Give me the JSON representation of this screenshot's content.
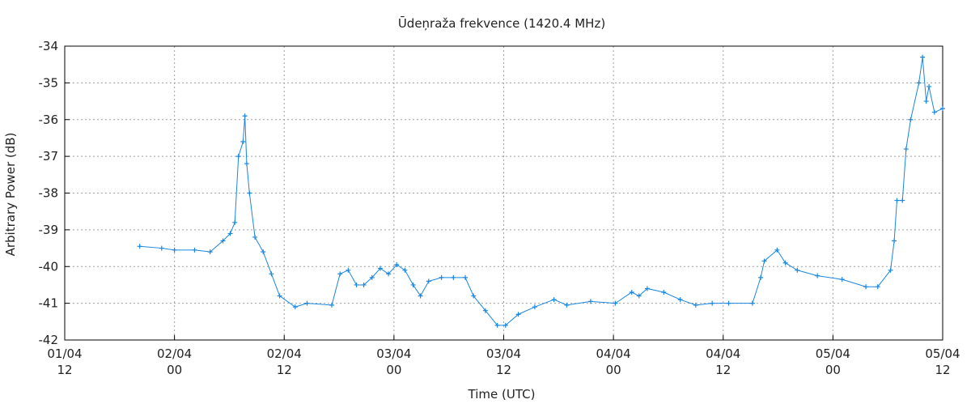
{
  "chart_data": {
    "type": "line",
    "title": "Ūdeņraža frekvence (1420.4 MHz)",
    "x_label": "Time (UTC)",
    "y_label": "Arbitrary Power (dB)",
    "x": [
      8.2,
      10.6,
      12,
      14.2,
      15.9,
      17.3,
      18.1,
      18.6,
      19.0,
      19.5,
      19.7,
      19.9,
      20.2,
      20.8,
      21.7,
      22.6,
      23.5,
      25.2,
      26.5,
      29.2,
      30.1,
      31.0,
      31.9,
      32.7,
      33.6,
      34.5,
      35.4,
      36.3,
      37.2,
      38.1,
      38.9,
      39.8,
      41.2,
      42.5,
      43.8,
      44.7,
      46.0,
      47.3,
      48.2,
      49.6,
      51.4,
      53.5,
      54.9,
      57.5,
      60.2,
      62.0,
      62.8,
      63.7,
      65.5,
      67.3,
      69.0,
      70.8,
      72.6,
      75.2,
      76.1,
      76.5,
      77.9,
      78.8,
      80.1,
      82.3,
      85.0,
      87.6,
      88.9,
      90.3,
      90.7,
      91.0,
      91.6,
      92.0,
      92.5,
      93.4,
      93.8,
      94.2,
      94.5,
      95.1,
      96.0
    ],
    "series": [
      {
        "color": "#1a86e0",
        "values": [
          -39.45,
          -39.5,
          -39.55,
          -39.55,
          -39.6,
          -39.3,
          -39.1,
          -38.8,
          -37.0,
          -36.6,
          -35.9,
          -37.2,
          -38.0,
          -39.2,
          -39.6,
          -40.2,
          -40.8,
          -41.1,
          -41.0,
          -41.05,
          -40.2,
          -40.1,
          -40.5,
          -40.5,
          -40.3,
          -40.05,
          -40.2,
          -39.95,
          -40.1,
          -40.5,
          -40.8,
          -40.4,
          -40.3,
          -40.3,
          -40.3,
          -40.8,
          -41.2,
          -41.6,
          -41.6,
          -41.3,
          -41.1,
          -40.9,
          -41.05,
          -40.95,
          -41.0,
          -40.7,
          -40.8,
          -40.6,
          -40.7,
          -40.9,
          -41.05,
          -41.0,
          -41.0,
          -41.0,
          -40.3,
          -39.85,
          -39.55,
          -39.9,
          -40.1,
          -40.25,
          -40.35,
          -40.55,
          -40.55,
          -40.1,
          -39.3,
          -38.2,
          -38.2,
          -36.8,
          -36.0,
          -35.0,
          -34.3,
          -35.5,
          -35.1,
          -35.8,
          -35.7
        ]
      }
    ],
    "xlim": [
      0,
      96
    ],
    "xticks": [
      {
        "value": 0,
        "label": "01/04\n12"
      },
      {
        "value": 12,
        "label": "02/04\n00"
      },
      {
        "value": 24,
        "label": "02/04\n12"
      },
      {
        "value": 36,
        "label": "03/04\n00"
      },
      {
        "value": 48,
        "label": "03/04\n12"
      },
      {
        "value": 60,
        "label": "04/04\n00"
      },
      {
        "value": 72,
        "label": "04/04\n12"
      },
      {
        "value": 84,
        "label": "05/04\n00"
      },
      {
        "value": 96,
        "label": "05/04\n12"
      }
    ],
    "ylim": [
      -42,
      -34
    ],
    "yticks": [
      -42,
      -41,
      -40,
      -39,
      -38,
      -37,
      -36,
      -35,
      -34
    ],
    "grid": true
  }
}
